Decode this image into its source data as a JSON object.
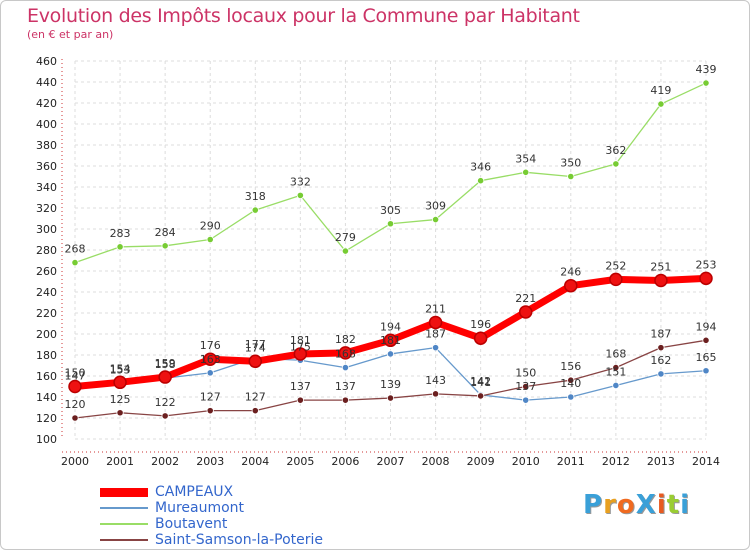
{
  "header": {
    "title": "Evolution des Impôts locaux pour la Commune par Habitant",
    "subtitle": "(en € et par an)"
  },
  "logo": {
    "text": "ProXiti",
    "letters": [
      "P",
      "r",
      "o",
      "X",
      "i",
      "t",
      "i"
    ],
    "colors": [
      "#3aa0d8",
      "#e8a020",
      "#f06a20",
      "#3aa0d8",
      "#e85a20",
      "#9acd32",
      "#3aa0d8"
    ]
  },
  "chart_data": {
    "type": "line",
    "x": [
      "2000",
      "2001",
      "2002",
      "2003",
      "2004",
      "2005",
      "2006",
      "2007",
      "2008",
      "2009",
      "2010",
      "2011",
      "2012",
      "2013",
      "2014"
    ],
    "yticks": [
      100,
      120,
      140,
      160,
      180,
      200,
      220,
      240,
      260,
      280,
      300,
      320,
      340,
      360,
      380,
      400,
      420,
      440,
      460
    ],
    "ylim": [
      100,
      460
    ],
    "grid": true,
    "legend_position": "bottom-left",
    "series": [
      {
        "name": "CAMPEAUX",
        "color": "#ff0000",
        "marker": "#ee0000",
        "values": [
          150,
          154,
          159,
          176,
          174,
          181,
          182,
          194,
          211,
          196,
          221,
          246,
          252,
          251,
          253
        ]
      },
      {
        "name": "Mureaumont",
        "color": "#6699cc",
        "marker": "#4f86c6",
        "values": [
          147,
          153,
          158,
          163,
          177,
          175,
          168,
          181,
          187,
          142,
          137,
          140,
          151,
          162,
          165
        ]
      },
      {
        "name": "Boutavent",
        "color": "#99dd66",
        "marker": "#77cc33",
        "values": [
          268,
          283,
          284,
          290,
          318,
          332,
          279,
          305,
          309,
          346,
          354,
          350,
          362,
          419,
          439
        ]
      },
      {
        "name": "Saint-Samson-la-Poterie",
        "color": "#884444",
        "marker": "#6b1f1f",
        "values": [
          120,
          125,
          122,
          127,
          127,
          137,
          137,
          139,
          143,
          141,
          150,
          156,
          168,
          187,
          194
        ]
      }
    ]
  }
}
